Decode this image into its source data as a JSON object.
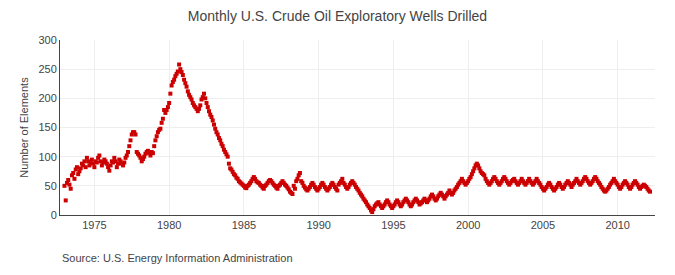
{
  "chart_data": {
    "type": "scatter",
    "title": "Monthly U.S. Crude Oil Exploratory Wells Drilled",
    "ylabel": "Number of Elements",
    "annotations": [
      "Source: U.S. Energy Information Administration"
    ],
    "color": "#cc0000",
    "marker": "square",
    "grid": true,
    "xlim": [
      1972.7,
      2012.5
    ],
    "xticks": [
      1975,
      1980,
      1985,
      1990,
      1995,
      2000,
      2005,
      2010
    ],
    "ylim": [
      0,
      300
    ],
    "yticks": [
      0,
      50,
      100,
      150,
      200,
      250,
      300
    ],
    "x": [
      1973,
      1973.083333333333,
      1973.166666666667,
      1973.25,
      1973.333333333333,
      1973.416666666667,
      1973.5,
      1973.583333333333,
      1973.666666666667,
      1973.75,
      1973.833333333333,
      1973.916666666667,
      1974,
      1974.083333333333,
      1974.166666666667,
      1974.25,
      1974.333333333333,
      1974.416666666667,
      1974.5,
      1974.583333333333,
      1974.666666666667,
      1974.75,
      1974.833333333333,
      1974.916666666667,
      1975,
      1975.083333333333,
      1975.166666666667,
      1975.25,
      1975.333333333333,
      1975.416666666667,
      1975.5,
      1975.583333333333,
      1975.666666666667,
      1975.75,
      1975.833333333333,
      1975.916666666667,
      1976,
      1976.083333333333,
      1976.166666666667,
      1976.25,
      1976.333333333333,
      1976.416666666667,
      1976.5,
      1976.583333333333,
      1976.666666666667,
      1976.75,
      1976.833333333333,
      1976.916666666667,
      1977,
      1977.083333333333,
      1977.166666666667,
      1977.25,
      1977.333333333333,
      1977.416666666667,
      1977.5,
      1977.583333333333,
      1977.666666666667,
      1977.75,
      1977.833333333333,
      1977.916666666667,
      1978,
      1978.083333333333,
      1978.166666666667,
      1978.25,
      1978.333333333333,
      1978.416666666667,
      1978.5,
      1978.583333333333,
      1978.666666666667,
      1978.75,
      1978.833333333333,
      1978.916666666667,
      1979,
      1979.083333333333,
      1979.166666666667,
      1979.25,
      1979.333333333333,
      1979.416666666667,
      1979.5,
      1979.583333333333,
      1979.666666666667,
      1979.75,
      1979.833333333333,
      1979.916666666667,
      1980,
      1980.083333333333,
      1980.166666666667,
      1980.25,
      1980.333333333333,
      1980.416666666667,
      1980.5,
      1980.583333333333,
      1980.666666666667,
      1980.75,
      1980.833333333333,
      1980.916666666667,
      1981,
      1981.083333333333,
      1981.166666666667,
      1981.25,
      1981.333333333333,
      1981.416666666667,
      1981.5,
      1981.583333333333,
      1981.666666666667,
      1981.75,
      1981.833333333333,
      1981.916666666667,
      1982,
      1982.083333333333,
      1982.166666666667,
      1982.25,
      1982.333333333333,
      1982.416666666667,
      1982.5,
      1982.583333333333,
      1982.666666666667,
      1982.75,
      1982.833333333333,
      1982.916666666667,
      1983,
      1983.083333333333,
      1983.166666666667,
      1983.25,
      1983.333333333333,
      1983.416666666667,
      1983.5,
      1983.583333333333,
      1983.666666666667,
      1983.75,
      1983.833333333333,
      1983.916666666667,
      1984,
      1984.083333333333,
      1984.166666666667,
      1984.25,
      1984.333333333333,
      1984.416666666667,
      1984.5,
      1984.583333333333,
      1984.666666666667,
      1984.75,
      1984.833333333333,
      1984.916666666667,
      1985,
      1985.083333333333,
      1985.166666666667,
      1985.25,
      1985.333333333333,
      1985.416666666667,
      1985.5,
      1985.583333333333,
      1985.666666666667,
      1985.75,
      1985.833333333333,
      1985.916666666667,
      1986,
      1986.083333333333,
      1986.166666666667,
      1986.25,
      1986.333333333333,
      1986.416666666667,
      1986.5,
      1986.583333333333,
      1986.666666666667,
      1986.75,
      1986.833333333333,
      1986.916666666667,
      1987,
      1987.083333333333,
      1987.166666666667,
      1987.25,
      1987.333333333333,
      1987.416666666667,
      1987.5,
      1987.583333333333,
      1987.666666666667,
      1987.75,
      1987.833333333333,
      1987.916666666667,
      1988,
      1988.083333333333,
      1988.166666666667,
      1988.25,
      1988.333333333333,
      1988.416666666667,
      1988.5,
      1988.583333333333,
      1988.666666666667,
      1988.75,
      1988.833333333333,
      1988.916666666667,
      1989,
      1989.083333333333,
      1989.166666666667,
      1989.25,
      1989.333333333333,
      1989.416666666667,
      1989.5,
      1989.583333333333,
      1989.666666666667,
      1989.75,
      1989.833333333333,
      1989.916666666667,
      1990,
      1990.083333333333,
      1990.166666666667,
      1990.25,
      1990.333333333333,
      1990.416666666667,
      1990.5,
      1990.583333333333,
      1990.666666666667,
      1990.75,
      1990.833333333333,
      1990.916666666667,
      1991,
      1991.083333333333,
      1991.166666666667,
      1991.25,
      1991.333333333333,
      1991.416666666667,
      1991.5,
      1991.583333333333,
      1991.666666666667,
      1991.75,
      1991.833333333333,
      1991.916666666667,
      1992,
      1992.083333333333,
      1992.166666666667,
      1992.25,
      1992.333333333333,
      1992.416666666667,
      1992.5,
      1992.583333333333,
      1992.666666666667,
      1992.75,
      1992.833333333333,
      1992.916666666667,
      1993,
      1993.083333333333,
      1993.166666666667,
      1993.25,
      1993.333333333333,
      1993.416666666667,
      1993.5,
      1993.583333333333,
      1993.666666666667,
      1993.75,
      1993.833333333333,
      1993.916666666667,
      1994,
      1994.083333333333,
      1994.166666666667,
      1994.25,
      1994.333333333333,
      1994.416666666667,
      1994.5,
      1994.583333333333,
      1994.666666666667,
      1994.75,
      1994.833333333333,
      1994.916666666667,
      1995,
      1995.083333333333,
      1995.166666666667,
      1995.25,
      1995.333333333333,
      1995.416666666667,
      1995.5,
      1995.583333333333,
      1995.666666666667,
      1995.75,
      1995.833333333333,
      1995.916666666667,
      1996,
      1996.083333333333,
      1996.166666666667,
      1996.25,
      1996.333333333333,
      1996.416666666667,
      1996.5,
      1996.583333333333,
      1996.666666666667,
      1996.75,
      1996.833333333333,
      1996.916666666667,
      1997,
      1997.083333333333,
      1997.166666666667,
      1997.25,
      1997.333333333333,
      1997.416666666667,
      1997.5,
      1997.583333333333,
      1997.666666666667,
      1997.75,
      1997.833333333333,
      1997.916666666667,
      1998,
      1998.083333333333,
      1998.166666666667,
      1998.25,
      1998.333333333333,
      1998.416666666667,
      1998.5,
      1998.583333333333,
      1998.666666666667,
      1998.75,
      1998.833333333333,
      1998.916666666667,
      1999,
      1999.083333333333,
      1999.166666666667,
      1999.25,
      1999.333333333333,
      1999.416666666667,
      1999.5,
      1999.583333333333,
      1999.666666666667,
      1999.75,
      1999.833333333333,
      1999.916666666667,
      2000,
      2000.083333333333,
      2000.166666666667,
      2000.25,
      2000.333333333333,
      2000.416666666667,
      2000.5,
      2000.583333333333,
      2000.666666666667,
      2000.75,
      2000.833333333333,
      2000.916666666667,
      2001,
      2001.083333333333,
      2001.166666666667,
      2001.25,
      2001.333333333333,
      2001.416666666667,
      2001.5,
      2001.583333333333,
      2001.666666666667,
      2001.75,
      2001.833333333333,
      2001.916666666667,
      2002,
      2002.083333333333,
      2002.166666666667,
      2002.25,
      2002.333333333333,
      2002.416666666667,
      2002.5,
      2002.583333333333,
      2002.666666666667,
      2002.75,
      2002.833333333333,
      2002.916666666667,
      2003,
      2003.083333333333,
      2003.166666666667,
      2003.25,
      2003.333333333333,
      2003.416666666667,
      2003.5,
      2003.583333333333,
      2003.666666666667,
      2003.75,
      2003.833333333333,
      2003.916666666667,
      2004,
      2004.083333333333,
      2004.166666666667,
      2004.25,
      2004.333333333333,
      2004.416666666667,
      2004.5,
      2004.583333333333,
      2004.666666666667,
      2004.75,
      2004.833333333333,
      2004.916666666667,
      2005,
      2005.083333333333,
      2005.166666666667,
      2005.25,
      2005.333333333333,
      2005.416666666667,
      2005.5,
      2005.583333333333,
      2005.666666666667,
      2005.75,
      2005.833333333333,
      2005.916666666667,
      2006,
      2006.083333333333,
      2006.166666666667,
      2006.25,
      2006.333333333333,
      2006.416666666667,
      2006.5,
      2006.583333333333,
      2006.666666666667,
      2006.75,
      2006.833333333333,
      2006.916666666667,
      2007,
      2007.083333333333,
      2007.166666666667,
      2007.25,
      2007.333333333333,
      2007.416666666667,
      2007.5,
      2007.583333333333,
      2007.666666666667,
      2007.75,
      2007.833333333333,
      2007.916666666667,
      2008,
      2008.083333333333,
      2008.166666666667,
      2008.25,
      2008.333333333333,
      2008.416666666667,
      2008.5,
      2008.583333333333,
      2008.666666666667,
      2008.75,
      2008.833333333333,
      2008.916666666667,
      2009,
      2009.083333333333,
      2009.166666666667,
      2009.25,
      2009.333333333333,
      2009.416666666667,
      2009.5,
      2009.583333333333,
      2009.666666666667,
      2009.75,
      2009.833333333333,
      2009.916666666667,
      2010,
      2010.083333333333,
      2010.166666666667,
      2010.25,
      2010.333333333333,
      2010.416666666667,
      2010.5,
      2010.583333333333,
      2010.666666666667,
      2010.75,
      2010.833333333333,
      2010.916666666667,
      2011,
      2011.083333333333,
      2011.166666666667,
      2011.25,
      2011.333333333333,
      2011.416666666667,
      2011.5,
      2011.583333333333,
      2011.666666666667,
      2011.75,
      2011.833333333333,
      2011.916666666667,
      2012,
      2012.083333333333,
      2012.166666666667
    ],
    "values": [
      50,
      25,
      55,
      60,
      52,
      45,
      68,
      72,
      62,
      78,
      82,
      70,
      75,
      80,
      88,
      85,
      92,
      82,
      98,
      92,
      85,
      90,
      95,
      88,
      82,
      92,
      90,
      98,
      102,
      92,
      85,
      90,
      95,
      92,
      88,
      82,
      76,
      85,
      92,
      90,
      98,
      92,
      82,
      88,
      95,
      92,
      88,
      85,
      90,
      98,
      102,
      108,
      118,
      128,
      138,
      142,
      142,
      138,
      108,
      105,
      102,
      98,
      92,
      96,
      100,
      105,
      108,
      110,
      106,
      102,
      108,
      106,
      118,
      128,
      135,
      142,
      146,
      148,
      158,
      165,
      180,
      175,
      180,
      185,
      192,
      208,
      222,
      228,
      232,
      238,
      242,
      246,
      258,
      250,
      245,
      240,
      232,
      226,
      220,
      212,
      206,
      202,
      198,
      192,
      188,
      185,
      182,
      178,
      182,
      188,
      198,
      202,
      208,
      200,
      192,
      185,
      178,
      172,
      168,
      162,
      155,
      148,
      142,
      138,
      132,
      128,
      122,
      118,
      112,
      108,
      104,
      100,
      88,
      80,
      78,
      74,
      70,
      68,
      64,
      62,
      58,
      56,
      54,
      52,
      50,
      47,
      46,
      50,
      52,
      55,
      58,
      62,
      65,
      62,
      58,
      56,
      55,
      52,
      50,
      47,
      45,
      50,
      52,
      55,
      58,
      60,
      58,
      55,
      52,
      50,
      47,
      45,
      50,
      52,
      55,
      58,
      55,
      52,
      50,
      47,
      44,
      40,
      38,
      36,
      50,
      45,
      58,
      62,
      68,
      72,
      58,
      55,
      50,
      47,
      44,
      42,
      45,
      48,
      52,
      55,
      52,
      48,
      45,
      42,
      45,
      48,
      52,
      55,
      52,
      48,
      45,
      42,
      45,
      48,
      52,
      55,
      52,
      48,
      45,
      42,
      52,
      55,
      58,
      62,
      55,
      52,
      48,
      45,
      48,
      52,
      55,
      58,
      55,
      52,
      48,
      45,
      42,
      38,
      35,
      32,
      28,
      25,
      22,
      18,
      15,
      12,
      8,
      5,
      10,
      15,
      18,
      20,
      22,
      18,
      15,
      12,
      15,
      18,
      22,
      25,
      22,
      18,
      15,
      12,
      15,
      18,
      22,
      25,
      22,
      18,
      15,
      18,
      22,
      25,
      28,
      25,
      22,
      18,
      15,
      18,
      22,
      25,
      28,
      25,
      22,
      18,
      20,
      22,
      25,
      28,
      25,
      22,
      25,
      28,
      32,
      35,
      32,
      28,
      25,
      28,
      32,
      35,
      38,
      35,
      32,
      28,
      32,
      35,
      38,
      42,
      38,
      35,
      38,
      42,
      45,
      48,
      52,
      55,
      58,
      62,
      58,
      55,
      52,
      55,
      58,
      62,
      65,
      70,
      75,
      80,
      85,
      88,
      85,
      80,
      75,
      72,
      70,
      68,
      62,
      58,
      55,
      52,
      55,
      58,
      62,
      65,
      62,
      58,
      55,
      52,
      55,
      58,
      62,
      65,
      62,
      58,
      55,
      52,
      55,
      58,
      60,
      62,
      58,
      55,
      52,
      55,
      58,
      62,
      58,
      55,
      52,
      55,
      58,
      62,
      58,
      55,
      52,
      55,
      58,
      62,
      58,
      55,
      52,
      48,
      45,
      42,
      45,
      48,
      52,
      55,
      52,
      48,
      45,
      42,
      45,
      48,
      52,
      55,
      52,
      48,
      45,
      48,
      52,
      55,
      58,
      55,
      52,
      48,
      52,
      55,
      58,
      62,
      58,
      55,
      52,
      55,
      58,
      62,
      65,
      62,
      58,
      55,
      52,
      55,
      58,
      62,
      65,
      62,
      58,
      55,
      52,
      48,
      45,
      42,
      40,
      42,
      45,
      48,
      52,
      55,
      58,
      62,
      58,
      55,
      52,
      48,
      45,
      48,
      52,
      55,
      58,
      55,
      52,
      48,
      45,
      48,
      52,
      55,
      58,
      55,
      52,
      48,
      45,
      48,
      50,
      52,
      50,
      48,
      45,
      42,
      40
    ]
  }
}
